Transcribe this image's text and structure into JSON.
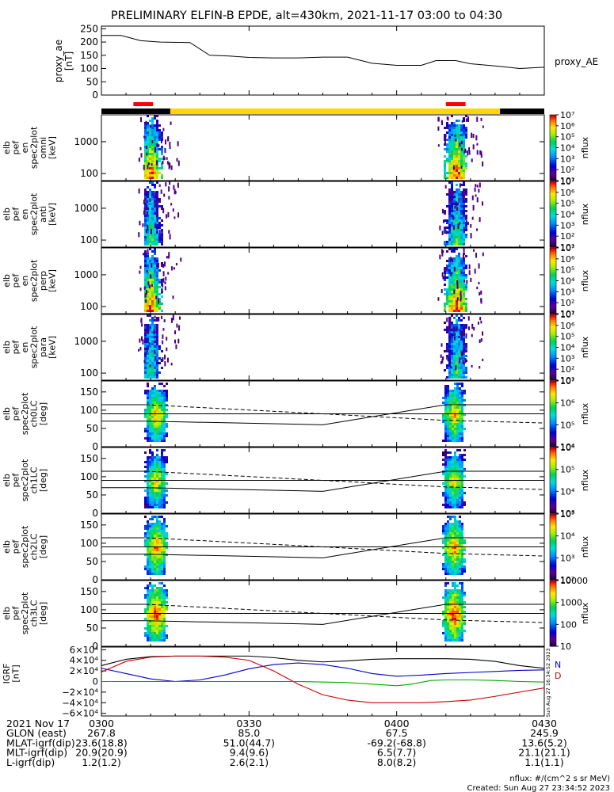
{
  "title": "PRELIMINARY ELFIN-B EPDE, alt=430km, 2021-11-17 03:00 to 04:30",
  "chart_data": [
    {
      "type": "line",
      "id": "proxy_ae",
      "ylabel_lines": [
        "proxy_ae",
        "[nT]"
      ],
      "right_label": "proxy_AE",
      "ylim": [
        0,
        260
      ],
      "yticks": [
        "0",
        "50",
        "100",
        "150",
        "200",
        "250"
      ],
      "x_min": [
        0,
        90
      ],
      "series": [
        {
          "x_min": [
            0,
            4,
            8,
            12,
            18,
            22,
            26,
            30,
            35,
            40,
            45,
            50,
            55,
            60,
            65,
            68,
            72,
            75,
            80,
            85,
            90
          ],
          "values": [
            225,
            225,
            205,
            200,
            198,
            150,
            147,
            142,
            140,
            140,
            143,
            143,
            120,
            112,
            112,
            130,
            130,
            118,
            110,
            100,
            105
          ]
        }
      ]
    },
    {
      "type": "bar",
      "id": "status_bar",
      "segments": [
        {
          "from": 0,
          "to": 14,
          "color": "#000000"
        },
        {
          "from": 14,
          "to": 81,
          "color": "#FFD700"
        },
        {
          "from": 81,
          "to": 90,
          "color": "#000000"
        }
      ],
      "markers": [
        {
          "from": 6.5,
          "to": 10.5,
          "color": "#FF0000"
        },
        {
          "from": 70,
          "to": 74,
          "color": "#FF0000"
        }
      ]
    },
    {
      "type": "heatmap",
      "id": "omni",
      "ylabel_lines": [
        "elb",
        "pef",
        "en",
        "spec2plot",
        "omni",
        "[keV]"
      ],
      "yscale": "log",
      "yticks": [
        "100",
        "1000"
      ],
      "colorbar": {
        "label": "nflux",
        "ticks": [
          "10¹",
          "10²",
          "10³",
          "10⁴",
          "10⁵",
          "10⁶",
          "10⁷"
        ]
      }
    },
    {
      "type": "heatmap",
      "id": "anti",
      "ylabel_lines": [
        "elb",
        "pef",
        "en",
        "spec2plot",
        "anti",
        "[keV]"
      ],
      "yscale": "log",
      "yticks": [
        "100",
        "1000"
      ],
      "colorbar": {
        "label": "nflux",
        "ticks": [
          "10¹",
          "10²",
          "10³",
          "10⁴",
          "10⁵",
          "10⁶",
          "10⁷"
        ]
      }
    },
    {
      "type": "heatmap",
      "id": "perp",
      "ylabel_lines": [
        "elb",
        "pef",
        "en",
        "spec2plot",
        "perp",
        "[keV]"
      ],
      "yscale": "log",
      "yticks": [
        "100",
        "1000"
      ],
      "colorbar": {
        "label": "nflux",
        "ticks": [
          "10¹",
          "10²",
          "10³",
          "10⁴",
          "10⁵",
          "10⁶",
          "10⁷"
        ]
      }
    },
    {
      "type": "heatmap",
      "id": "para",
      "ylabel_lines": [
        "elb",
        "pef",
        "en",
        "spec2plot",
        "para",
        "[keV]"
      ],
      "yscale": "log",
      "yticks": [
        "100",
        "1000"
      ],
      "colorbar": {
        "label": "nflux",
        "ticks": [
          "10¹",
          "10²",
          "10³",
          "10⁴",
          "10⁵",
          "10⁶",
          "10⁷"
        ]
      }
    },
    {
      "type": "heatmap",
      "id": "ch0LC",
      "ylabel_lines": [
        "elb",
        "pef",
        "spec2plot",
        "ch0LC",
        "[deg]"
      ],
      "ylim": [
        0,
        180
      ],
      "yticks": [
        "0",
        "50",
        "100",
        "150"
      ],
      "colorbar": {
        "label": "nflux",
        "ticks": [
          "10⁴",
          "10⁵",
          "10⁶",
          "10⁷"
        ]
      }
    },
    {
      "type": "heatmap",
      "id": "ch1LC",
      "ylabel_lines": [
        "elb",
        "pef",
        "spec2plot",
        "ch1LC",
        "[deg]"
      ],
      "ylim": [
        0,
        180
      ],
      "yticks": [
        "0",
        "50",
        "100",
        "150"
      ],
      "colorbar": {
        "label": "nflux",
        "ticks": [
          "10³",
          "10⁴",
          "10⁵",
          "10⁶"
        ]
      }
    },
    {
      "type": "heatmap",
      "id": "ch2LC",
      "ylabel_lines": [
        "elb",
        "pef",
        "spec2plot",
        "ch2LC",
        "[deg]"
      ],
      "ylim": [
        0,
        180
      ],
      "yticks": [
        "0",
        "50",
        "100",
        "150"
      ],
      "colorbar": {
        "label": "nflux",
        "ticks": [
          "10²",
          "10³",
          "10⁴",
          "10⁵"
        ]
      }
    },
    {
      "type": "heatmap",
      "id": "ch3LC",
      "ylabel_lines": [
        "elb",
        "pef",
        "spec2plot",
        "ch3LC",
        "[deg]"
      ],
      "ylim": [
        0,
        180
      ],
      "yticks": [
        "0",
        "50",
        "100",
        "150"
      ],
      "colorbar": {
        "label": "nflux",
        "ticks": [
          "10",
          "100",
          "1000",
          "10000"
        ]
      }
    },
    {
      "type": "line",
      "id": "igrf",
      "ylabel_lines": [
        "IGRF",
        "[nT]"
      ],
      "ylim": [
        -65000,
        65000
      ],
      "yticks": [
        "6×10⁴",
        "4×10⁴",
        "2×10⁴",
        "0",
        "−2×10⁴",
        "−4×10⁴",
        "−6×10⁴"
      ],
      "legend": [
        {
          "label": "N",
          "color": "#0000CC"
        },
        {
          "label": "D",
          "color": "#CC0000"
        }
      ],
      "side_note": "Sun Aug 27 16:34:52 2023",
      "series": [
        {
          "color": "#000000",
          "x_min": [
            0,
            5,
            10,
            15,
            20,
            25,
            30,
            35,
            40,
            45,
            50,
            55,
            60,
            65,
            70,
            75,
            80,
            85,
            90
          ],
          "values": [
            30000,
            42000,
            47000,
            48000,
            48000,
            48000,
            48000,
            45000,
            40000,
            37000,
            39000,
            42000,
            43000,
            43000,
            43000,
            42000,
            38000,
            30000,
            25000
          ]
        },
        {
          "color": "#0000CC",
          "x_min": [
            0,
            5,
            10,
            15,
            20,
            25,
            30,
            35,
            40,
            45,
            50,
            55,
            60,
            65,
            70,
            75,
            80,
            85,
            90
          ],
          "values": [
            25000,
            15000,
            5000,
            0,
            3000,
            12000,
            24000,
            32000,
            35000,
            32000,
            25000,
            15000,
            10000,
            12000,
            15000,
            17000,
            19000,
            21000,
            22000
          ]
        },
        {
          "color": "#CC0000",
          "x_min": [
            0,
            5,
            10,
            15,
            20,
            25,
            30,
            35,
            40,
            45,
            50,
            55,
            60,
            65,
            70,
            75,
            80,
            85,
            90
          ],
          "values": [
            18000,
            38000,
            46000,
            48000,
            48000,
            46000,
            40000,
            20000,
            -5000,
            -25000,
            -35000,
            -40000,
            -40000,
            -40000,
            -38000,
            -35000,
            -28000,
            -20000,
            -12000
          ]
        },
        {
          "color": "#00AA00",
          "x_min": [
            0,
            10,
            20,
            30,
            40,
            50,
            55,
            60,
            63,
            67,
            70,
            75,
            80,
            85,
            90
          ],
          "values": [
            0,
            0,
            0,
            0,
            0,
            -2000,
            -5000,
            -8000,
            -5000,
            2000,
            3000,
            3000,
            2000,
            0,
            -1000
          ]
        }
      ]
    }
  ],
  "xaxis": {
    "date": "2021 Nov 17",
    "ticks": [
      "0300",
      "0330",
      "0400",
      "0430"
    ],
    "rows": [
      {
        "label": "GLON (east)",
        "values": [
          "267.8",
          "85.0",
          "67.5",
          "245.9"
        ]
      },
      {
        "label": "MLAT-igrf(dip)",
        "values": [
          "23.6(18.8)",
          "51.0(44.7)",
          "-69.2(-68.8)",
          "13.6(5.2)"
        ]
      },
      {
        "label": "MLT-igrf(dip)",
        "values": [
          "20.9(20.9)",
          "9.4(9.6)",
          "6.5(7.7)",
          "21.1(21.1)"
        ]
      },
      {
        "label": "L-igrf(dip)",
        "values": [
          "1.2(1.2)",
          "2.6(2.1)",
          "8.0(8.2)",
          "1.1(1.1)"
        ]
      }
    ]
  },
  "footer": {
    "units": "nflux: #/(cm^2 s sr MeV)",
    "created": "Created: Sun Aug 27 23:34:52 2023"
  }
}
